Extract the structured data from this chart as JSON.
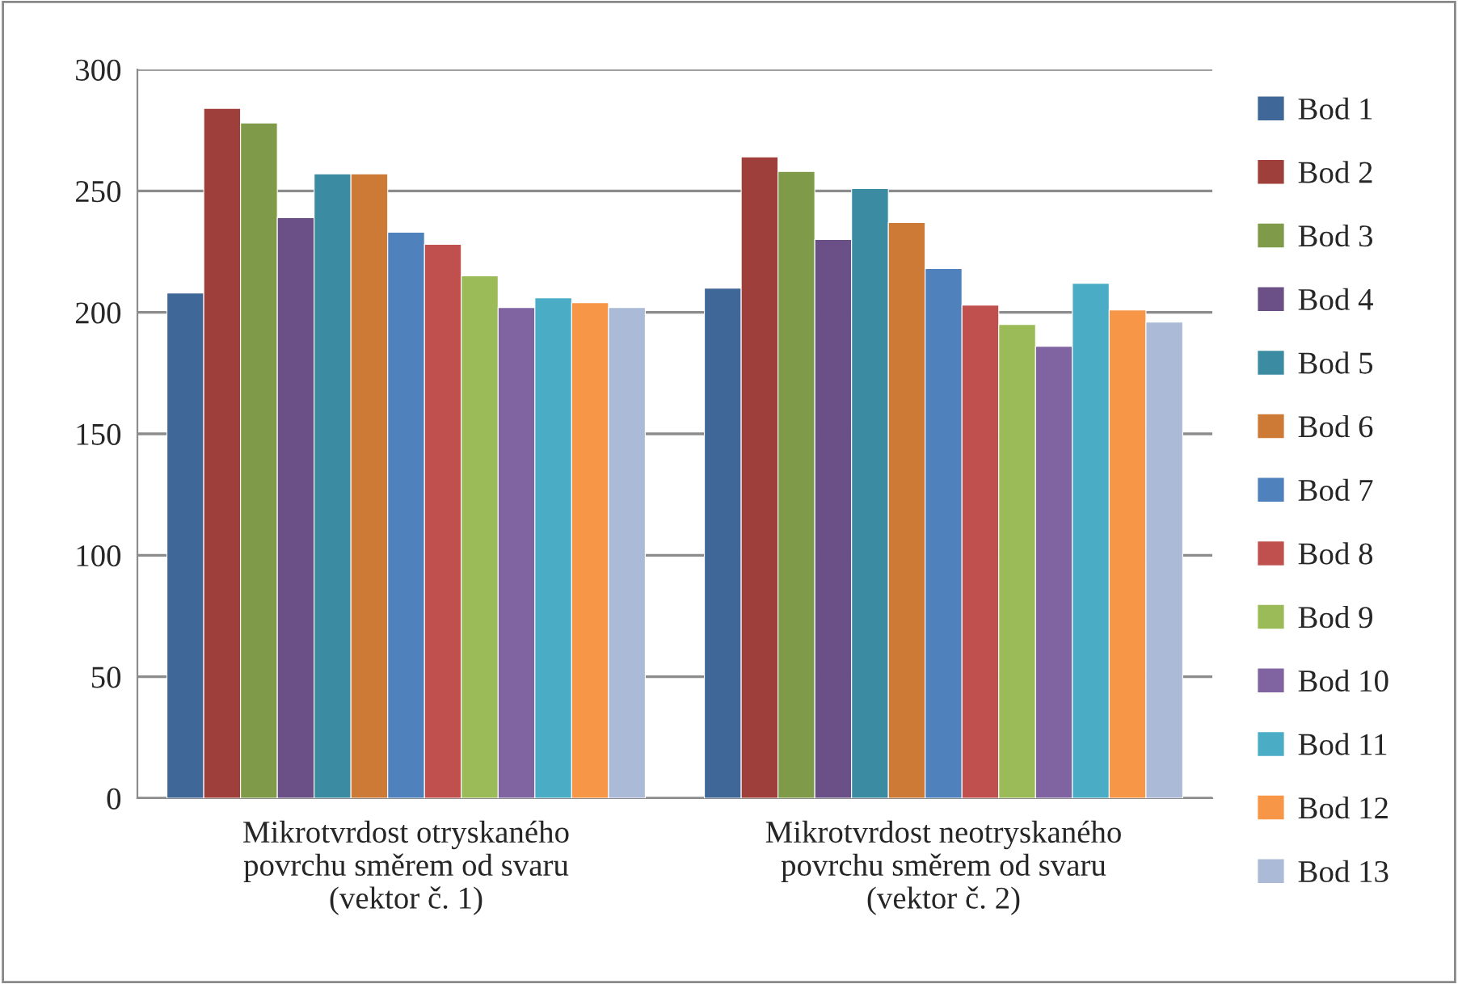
{
  "chart_data": {
    "type": "bar",
    "categories": [
      "Mikrotvrdost otryskaného\npovrchu směrem od svaru\n(vektor č. 1)",
      "Mikrotvrdost neotryskaného\npovrchu směrem od svaru\n(vektor č. 2)"
    ],
    "series": [
      {
        "name": "Bod 1",
        "color": "#3f6797",
        "values": [
          208,
          210
        ]
      },
      {
        "name": "Bod 2",
        "color": "#9e3f3c",
        "values": [
          284,
          264
        ]
      },
      {
        "name": "Bod 3",
        "color": "#7f9a48",
        "values": [
          278,
          258
        ]
      },
      {
        "name": "Bod 4",
        "color": "#6a5087",
        "values": [
          239,
          230
        ]
      },
      {
        "name": "Bod 5",
        "color": "#3b8ba3",
        "values": [
          257,
          251
        ]
      },
      {
        "name": "Bod 6",
        "color": "#cc7a36",
        "values": [
          257,
          237
        ]
      },
      {
        "name": "Bod 7",
        "color": "#4f81bd",
        "values": [
          233,
          218
        ]
      },
      {
        "name": "Bod 8",
        "color": "#c0504d",
        "values": [
          228,
          203
        ]
      },
      {
        "name": "Bod 9",
        "color": "#9bbb59",
        "values": [
          215,
          195
        ]
      },
      {
        "name": "Bod 10",
        "color": "#8064a2",
        "values": [
          202,
          186
        ]
      },
      {
        "name": "Bod 11",
        "color": "#4bacc6",
        "values": [
          206,
          212
        ]
      },
      {
        "name": "Bod 12",
        "color": "#f79646",
        "values": [
          204,
          201
        ]
      },
      {
        "name": "Bod 13",
        "color": "#aabad7",
        "values": [
          202,
          196
        ]
      }
    ],
    "ylim": [
      0,
      300
    ],
    "yticks": [
      0,
      50,
      100,
      150,
      200,
      250,
      300
    ],
    "grid": "y",
    "legend": "right"
  }
}
